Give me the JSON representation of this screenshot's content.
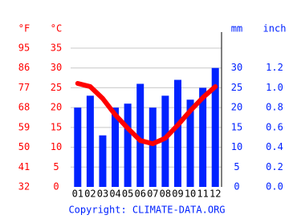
{
  "chart_data": {
    "type": "bar",
    "categories": [
      "01",
      "02",
      "03",
      "04",
      "05",
      "06",
      "07",
      "08",
      "09",
      "10",
      "11",
      "12"
    ],
    "f_label": "°F",
    "flim": [
      32,
      95
    ],
    "fticks": [
      32,
      41,
      50,
      59,
      68,
      77,
      86,
      95
    ],
    "y_label": "°C",
    "ylim": [
      0,
      35
    ],
    "yticks": [
      0,
      5,
      10,
      15,
      20,
      25,
      30,
      35
    ],
    "y2_label": "mm",
    "y2lim": [
      0,
      35
    ],
    "y2ticks": [
      0,
      5,
      10,
      15,
      20,
      25,
      30
    ],
    "y3_label": "inch",
    "y3lim": [
      0,
      1.4
    ],
    "y3ticks": [
      {
        "value": 0,
        "label": "0.0"
      },
      0.2,
      0.4,
      0.6,
      0.8,
      {
        "value": 1,
        "label": "1.0"
      },
      1.2
    ],
    "grid": true,
    "series": [
      {
        "type": "bar",
        "axis": "y2",
        "color": "#0022ff",
        "values": [
          20,
          23,
          13,
          20,
          21,
          26,
          20,
          23,
          27,
          22,
          25,
          30
        ]
      },
      {
        "type": "line",
        "color": "#ff0000",
        "values": [
          26.1,
          25.3,
          22.3,
          18.2,
          14.8,
          11.7,
          10.9,
          12.3,
          15.6,
          19.2,
          22.5,
          25.3
        ]
      }
    ],
    "source": "Copyright: CLIMATE-DATA.ORG"
  }
}
